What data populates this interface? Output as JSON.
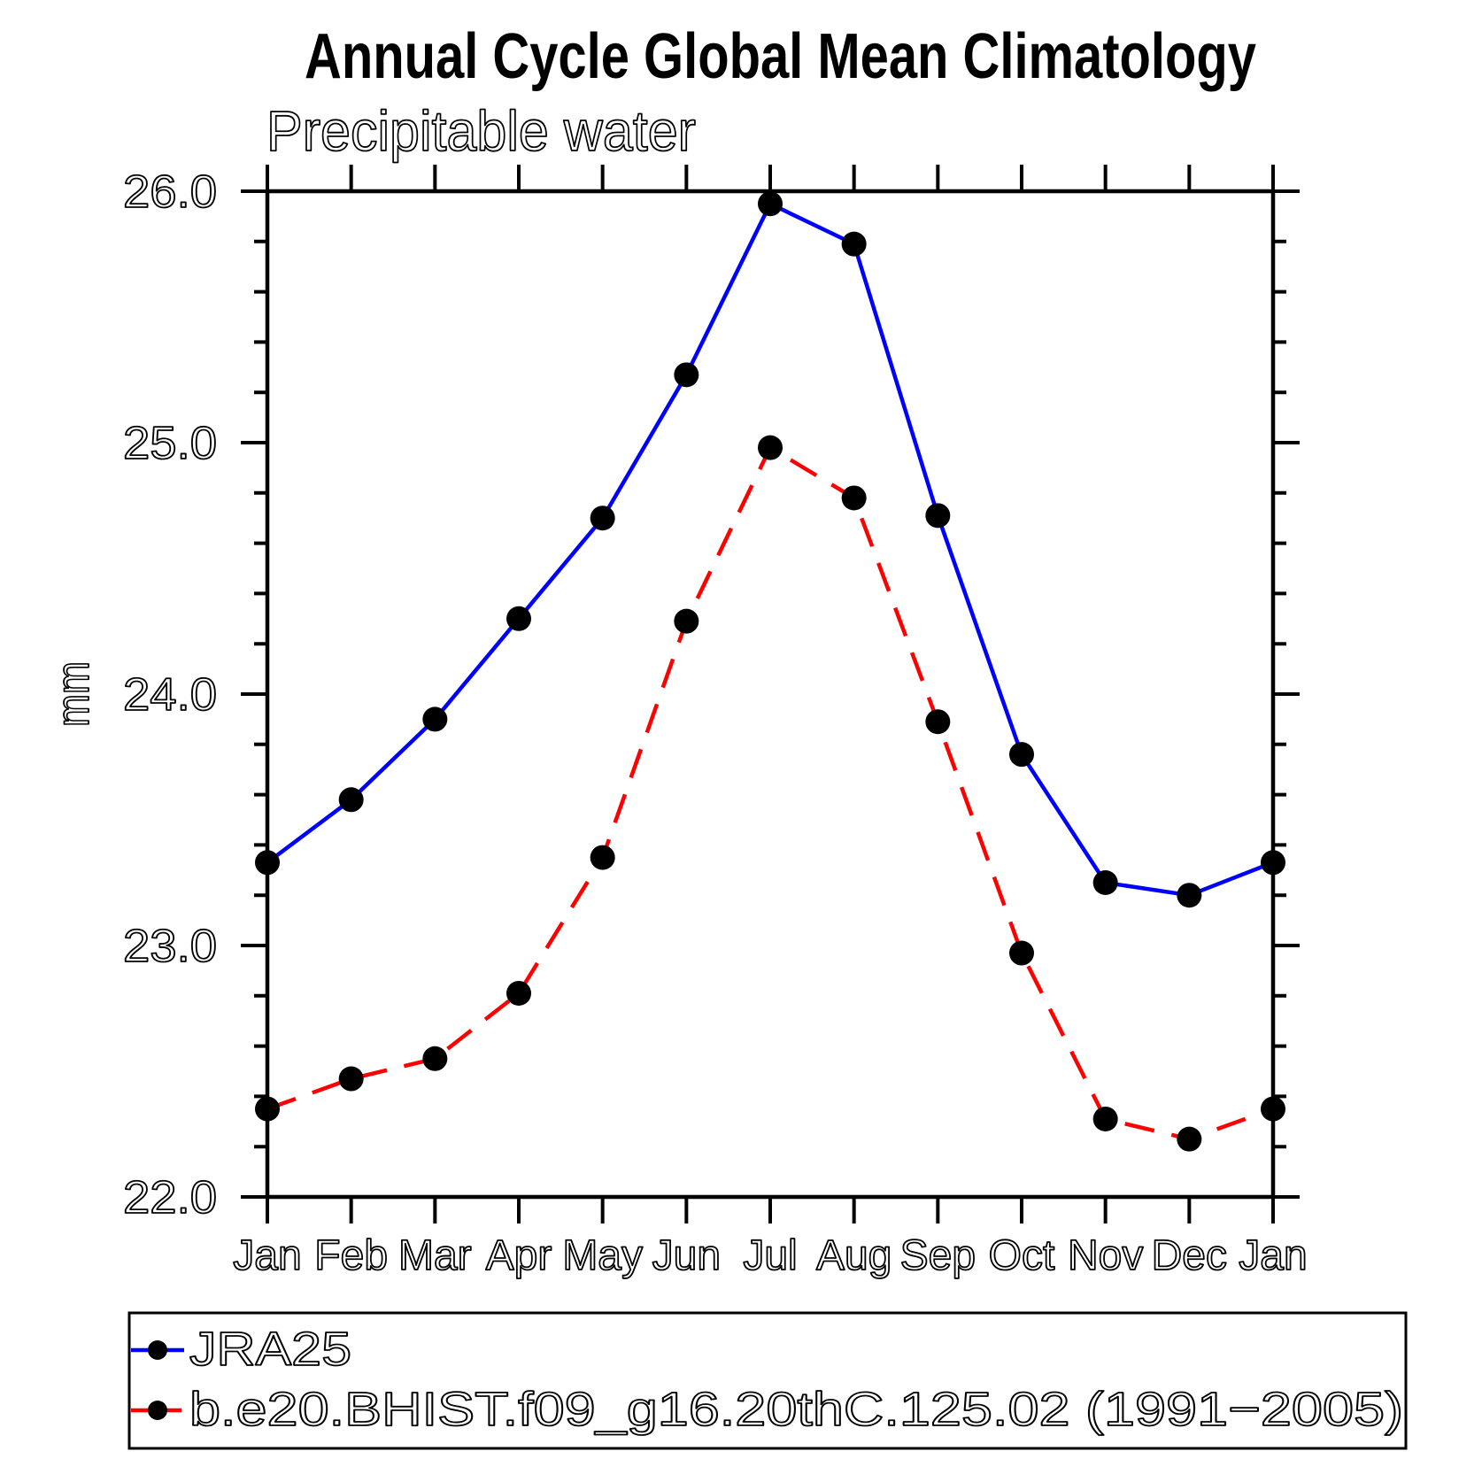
{
  "title": "Annual Cycle Global Mean Climatology",
  "subtitle": "Precipitable water",
  "y_axis": {
    "title": "mm",
    "tick_labels": [
      "26.0",
      "25.0",
      "24.0",
      "23.0",
      "22.0"
    ]
  },
  "x_axis": {
    "labels": [
      "Jan",
      "Feb",
      "Mar",
      "Apr",
      "May",
      "Jun",
      "Jul",
      "Aug",
      "Sep",
      "Oct",
      "Nov",
      "Dec",
      "Jan"
    ]
  },
  "legend": {
    "items": [
      {
        "label": "JRA25",
        "color": "#0000ff",
        "line_style": "solid",
        "marker": "black-dot"
      },
      {
        "label": "b.e20.BHIST.f09_g16.20thC.125.02 (1991−2005)",
        "color": "#ff0000",
        "line_style": "dashed",
        "marker": "black-dot"
      }
    ]
  },
  "chart_data": {
    "type": "line",
    "title": "Annual Cycle Global Mean Climatology",
    "subtitle": "Precipitable water",
    "xlabel": "",
    "ylabel": "mm",
    "ylim": [
      22.0,
      26.0
    ],
    "y_major_step": 1.0,
    "y_minor_step": 0.2,
    "grid": false,
    "legend_position": "bottom-left-box",
    "categories": [
      "Jan",
      "Feb",
      "Mar",
      "Apr",
      "May",
      "Jun",
      "Jul",
      "Aug",
      "Sep",
      "Oct",
      "Nov",
      "Dec",
      "Jan"
    ],
    "series": [
      {
        "name": "JRA25",
        "color": "#0000ff",
        "style": "solid",
        "marker": "circle",
        "marker_color": "#000000",
        "values": [
          23.33,
          23.58,
          23.9,
          24.3,
          24.7,
          25.27,
          25.95,
          25.79,
          24.71,
          23.76,
          23.25,
          23.2,
          23.33
        ]
      },
      {
        "name": "b.e20.BHIST.f09_g16.20thC.125.02 (1991−2005)",
        "color": "#ff0000",
        "style": "dashed",
        "marker": "circle",
        "marker_color": "#000000",
        "values": [
          22.35,
          22.47,
          22.55,
          22.81,
          23.35,
          24.29,
          24.98,
          24.78,
          23.89,
          22.97,
          22.31,
          22.23,
          22.35
        ]
      }
    ]
  }
}
